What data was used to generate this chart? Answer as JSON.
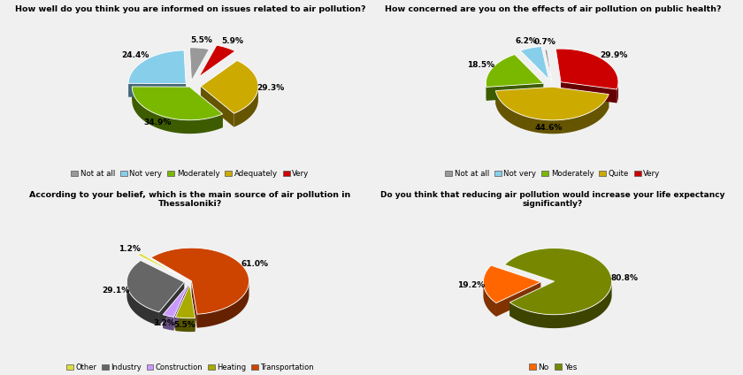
{
  "chart1": {
    "title": "How well do you think you are informed on issues related to air pollution?",
    "values": [
      5.5,
      24.4,
      34.9,
      29.3,
      5.9
    ],
    "labels": [
      "5.5%",
      "24.4%",
      "34.9%",
      "29.3%",
      "5.9%"
    ],
    "legend": [
      "Not at all",
      "Not very",
      "Moderately",
      "Adequately",
      "Very"
    ],
    "colors": [
      "#999999",
      "#87CEEB",
      "#7ab800",
      "#ccaa00",
      "#cc0000"
    ],
    "explode": [
      0.06,
      0.04,
      0.01,
      0.07,
      0.12
    ],
    "startangle": 72
  },
  "chart2": {
    "title": "How concerned are you on the effects of air pollution on public health?",
    "values": [
      0.7,
      6.2,
      18.5,
      44.6,
      29.9
    ],
    "labels": [
      "0.7%",
      "6.2%",
      "18.5%",
      "44.6%",
      "29.9%"
    ],
    "legend": [
      "Not at all",
      "Not very",
      "Moderately",
      "Quite",
      "Very"
    ],
    "colors": [
      "#999999",
      "#87CEEB",
      "#7ab800",
      "#ccaa00",
      "#cc0000"
    ],
    "explode": [
      0.04,
      0.08,
      0.07,
      0.01,
      0.07
    ],
    "startangle": 95
  },
  "chart3": {
    "title": "According to your belief, which is the main source of air pollution in Thessaloniki?",
    "values": [
      1.2,
      29.1,
      3.2,
      5.5,
      61.0
    ],
    "labels": [
      "1.2%",
      "29.1%",
      "3.2%",
      "5.5%",
      "61.0%"
    ],
    "legend": [
      "Other",
      "Industry",
      "Construction",
      "Heating",
      "Transportation"
    ],
    "colors": [
      "#dddd44",
      "#666666",
      "#cc99ff",
      "#aaaa00",
      "#cc4400"
    ],
    "explode": [
      0.08,
      0.04,
      0.04,
      0.04,
      0.01
    ],
    "startangle": 135
  },
  "chart4": {
    "title": "Do you think that reducing air pollution would increase your life expectancy significantly?",
    "values": [
      19.2,
      80.8
    ],
    "labels": [
      "19.2%",
      "80.8%"
    ],
    "legend": [
      "No",
      "Yes"
    ],
    "colors": [
      "#ff6600",
      "#778800"
    ],
    "explode": [
      0.08,
      0.01
    ],
    "startangle": 150
  },
  "bg_color": "#f0f0f0"
}
